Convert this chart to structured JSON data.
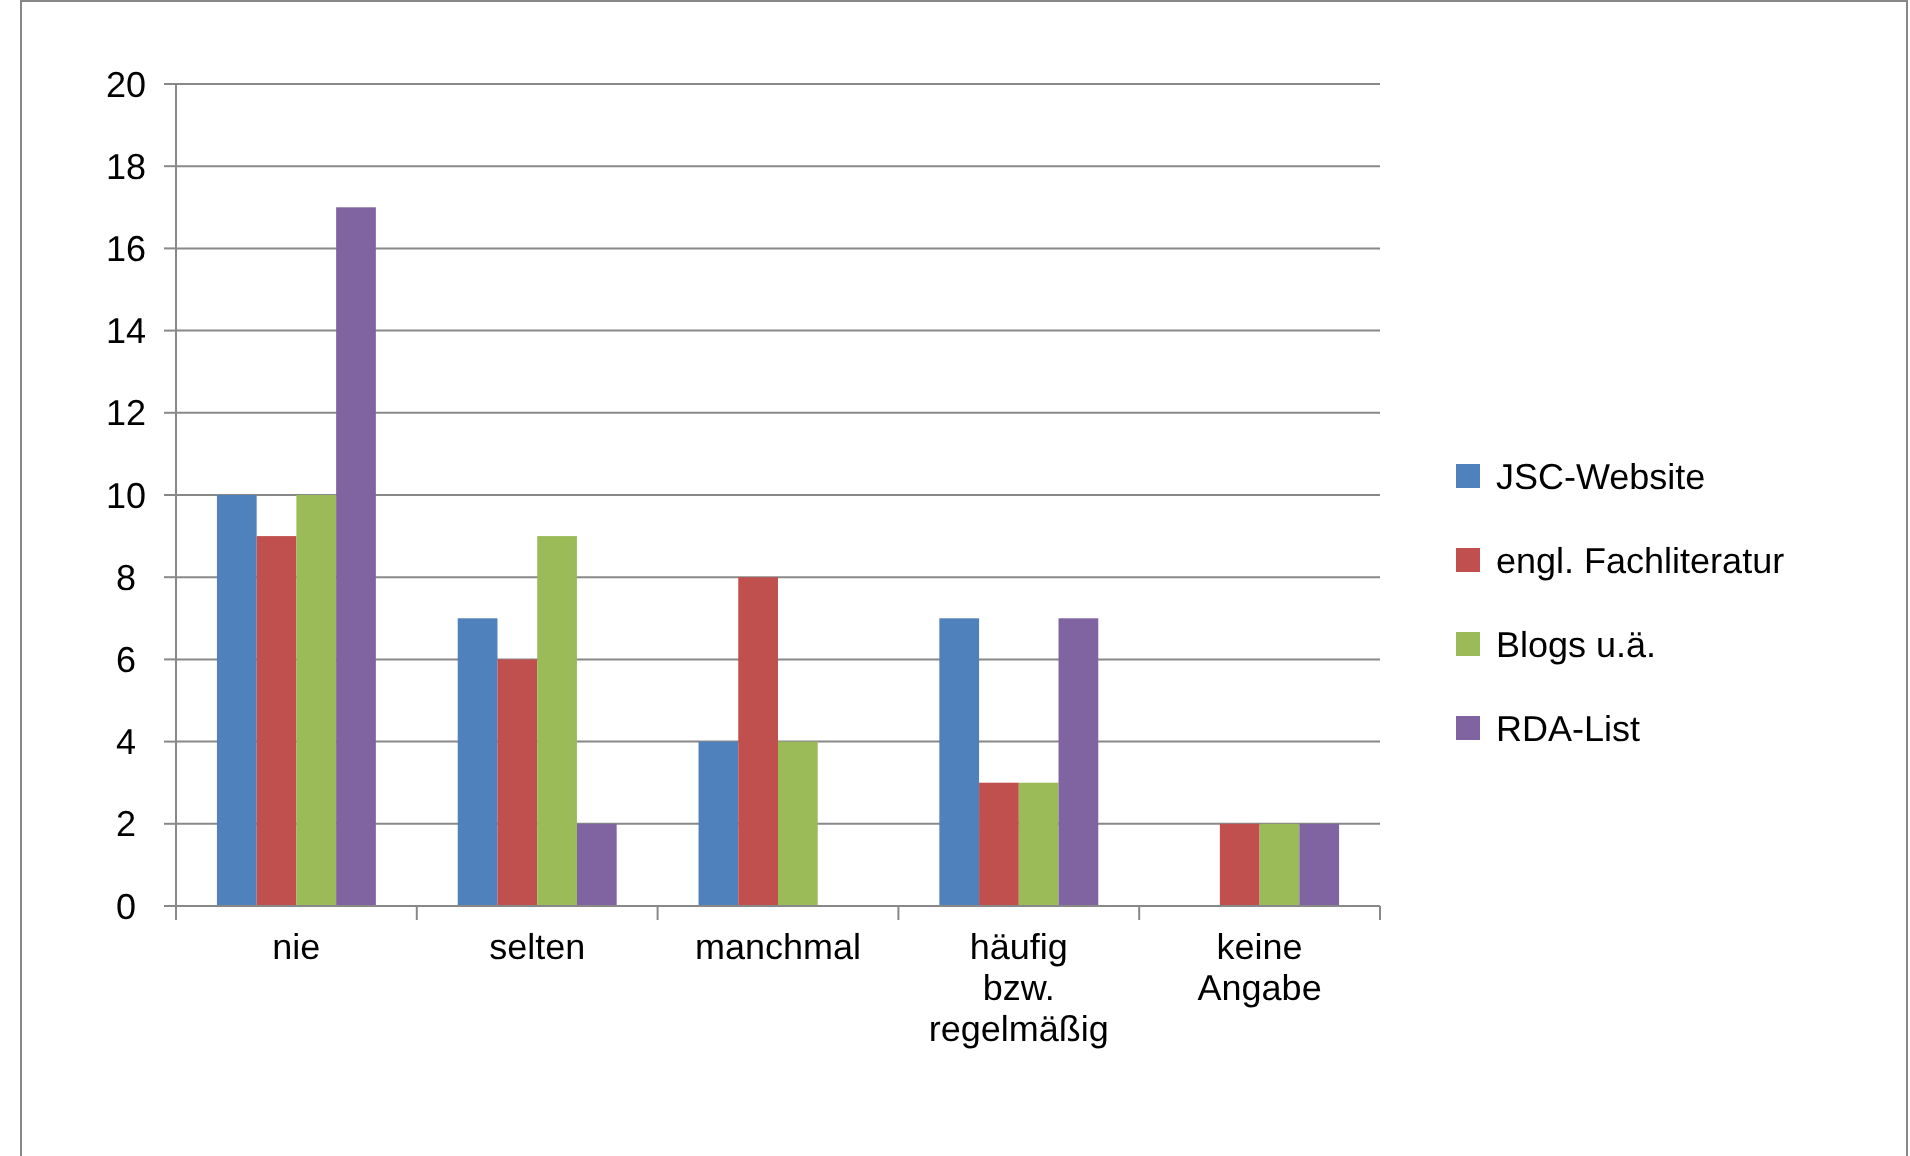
{
  "chart_data": {
    "type": "bar",
    "categories": [
      "nie",
      "selten",
      "manchmal",
      "häufig bzw. regelmäßig",
      "keine Angabe"
    ],
    "series": [
      {
        "name": "JSC-Website",
        "color": "#4f81bd",
        "values": [
          10,
          7,
          4,
          7,
          null
        ]
      },
      {
        "name": "engl. Fachliteratur",
        "color": "#c0504d",
        "values": [
          9,
          6,
          8,
          3,
          2
        ]
      },
      {
        "name": "Blogs u.ä.",
        "color": "#9bbb59",
        "values": [
          10,
          9,
          4,
          3,
          2
        ]
      },
      {
        "name": "RDA-List",
        "color": "#8064a2",
        "values": [
          17,
          2,
          null,
          7,
          2
        ]
      }
    ],
    "ylim": [
      0,
      20
    ],
    "yticks": [
      0,
      2,
      4,
      6,
      8,
      10,
      12,
      14,
      16,
      18,
      20
    ],
    "grid": "y",
    "legend": "right"
  }
}
